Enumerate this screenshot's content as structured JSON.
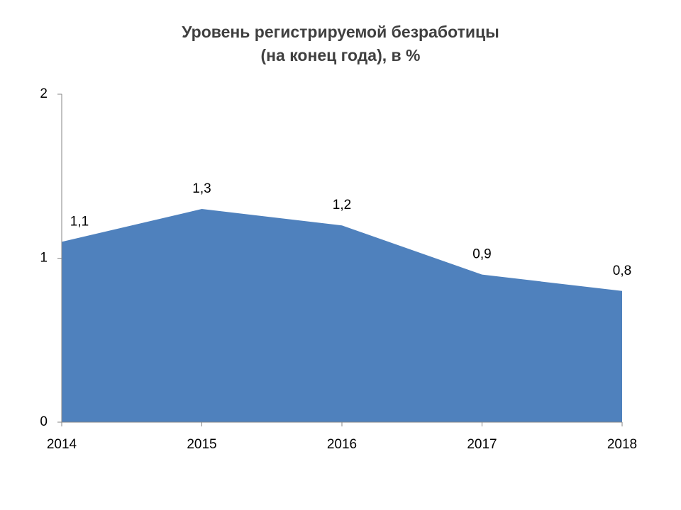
{
  "chart_data": {
    "type": "area",
    "title": [
      "Уровень регистрируемой безработицы",
      "(на конец года), в %"
    ],
    "categories": [
      "2014",
      "2015",
      "2016",
      "2017",
      "2018"
    ],
    "values": [
      1.1,
      1.3,
      1.2,
      0.9,
      0.8
    ],
    "value_labels": [
      "1,1",
      "1,3",
      "1,2",
      "0,9",
      "0,8"
    ],
    "color": "#4f81bd",
    "ylim": [
      0,
      2
    ],
    "yticks": [
      0,
      1,
      2
    ],
    "grid": false
  }
}
